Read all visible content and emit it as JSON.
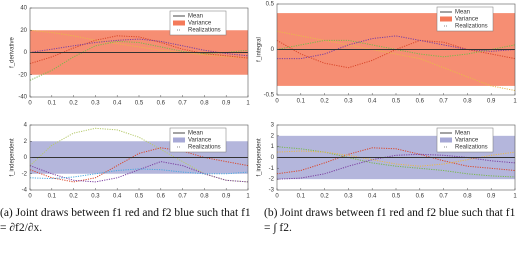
{
  "chart_data": [
    {
      "type": "line",
      "ylabel": "f_derivative",
      "x": [
        0,
        0.1,
        0.2,
        0.3,
        0.4,
        0.5,
        0.6,
        0.7,
        0.8,
        0.9,
        1
      ],
      "xlim": [
        0,
        1
      ],
      "xticks": [
        0,
        0.1,
        0.2,
        0.3,
        0.4,
        0.5,
        0.6,
        0.7,
        0.8,
        0.9,
        1
      ],
      "ylim": [
        -40,
        40
      ],
      "yticks": [
        -40,
        -20,
        0,
        20,
        40
      ],
      "series": [
        {
          "name": "Mean",
          "color": "#333333",
          "values": [
            0,
            0,
            0,
            0,
            0,
            0,
            0,
            0,
            0,
            0,
            0
          ]
        }
      ],
      "band": {
        "name": "Variance",
        "color": "#f47a5a",
        "lower": -20,
        "upper": 20
      },
      "realizations": {
        "name": "Realizations",
        "curves": [
          {
            "color": "#e8b84a",
            "values": [
              20,
              18,
              15,
              11,
              8,
              5,
              2,
              0,
              -2,
              -4,
              -5
            ]
          },
          {
            "color": "#d9472b",
            "values": [
              -10,
              -4,
              4,
              11,
              15,
              14,
              9,
              3,
              -1,
              -3,
              -5
            ]
          },
          {
            "color": "#7a3fa0",
            "values": [
              0,
              3,
              6,
              9,
              11,
              12,
              10,
              6,
              2,
              -1,
              -3
            ]
          },
          {
            "color": "#77b84a",
            "values": [
              -25,
              -16,
              -4,
              6,
              10,
              9,
              5,
              1,
              -1,
              0,
              2
            ]
          }
        ]
      }
    },
    {
      "type": "line",
      "ylabel": "f_integral",
      "x": [
        0,
        0.1,
        0.2,
        0.3,
        0.4,
        0.5,
        0.6,
        0.7,
        0.8,
        0.9,
        1
      ],
      "xlim": [
        0,
        1
      ],
      "xticks": [
        0,
        0.1,
        0.2,
        0.3,
        0.4,
        0.5,
        0.6,
        0.7,
        0.8,
        0.9,
        1
      ],
      "ylim": [
        -0.5,
        0.5
      ],
      "yticks": [
        -0.5,
        0,
        0.5
      ],
      "series": [
        {
          "name": "Mean",
          "color": "#333333",
          "values": [
            0,
            0,
            0,
            0,
            0,
            0,
            0,
            0,
            0,
            0,
            0
          ]
        }
      ],
      "band": {
        "name": "Variance",
        "color": "#f47a5a",
        "lower": -0.4,
        "upper": 0.4
      },
      "realizations": {
        "name": "Realizations",
        "curves": [
          {
            "color": "#d9472b",
            "values": [
              0.1,
              -0.05,
              -0.15,
              -0.2,
              -0.12,
              0,
              0.1,
              0.08,
              0,
              -0.05,
              -0.1
            ]
          },
          {
            "color": "#e8b84a",
            "values": [
              0.2,
              0.15,
              0.1,
              0.05,
              0,
              -0.05,
              -0.1,
              -0.2,
              -0.3,
              -0.4,
              -0.45
            ]
          },
          {
            "color": "#77b84a",
            "values": [
              0,
              0.05,
              0.1,
              0.1,
              0.05,
              0,
              -0.05,
              -0.08,
              -0.05,
              0,
              0.05
            ]
          },
          {
            "color": "#7a3fa0",
            "values": [
              -0.1,
              -0.1,
              -0.05,
              0.05,
              0.12,
              0.15,
              0.1,
              0.05,
              0,
              -0.02,
              0
            ]
          }
        ]
      }
    },
    {
      "type": "line",
      "ylabel": "f_independent",
      "x": [
        0,
        0.1,
        0.2,
        0.3,
        0.4,
        0.5,
        0.6,
        0.7,
        0.8,
        0.9,
        1
      ],
      "xlim": [
        0,
        1
      ],
      "xticks": [
        0,
        0.1,
        0.2,
        0.3,
        0.4,
        0.5,
        0.6,
        0.7,
        0.8,
        0.9,
        1
      ],
      "ylim": [
        -4,
        4
      ],
      "yticks": [
        -4,
        -2,
        0,
        2,
        4
      ],
      "series": [
        {
          "name": "Mean",
          "color": "#333333",
          "values": [
            0,
            0,
            0,
            0,
            0,
            0,
            0,
            0,
            0,
            0,
            0
          ]
        }
      ],
      "band": {
        "name": "Variance",
        "color": "#a7a9d6",
        "lower": -2,
        "upper": 2
      },
      "realizations": {
        "name": "Realizations",
        "curves": [
          {
            "color": "#b5c96a",
            "values": [
              -1,
              1.5,
              3,
              3.6,
              3.4,
              2.5,
              1,
              -0.5,
              -2,
              -2.8,
              -3
            ]
          },
          {
            "color": "#d9472b",
            "values": [
              -1.5,
              -2.5,
              -3,
              -2.5,
              -1,
              0.5,
              1.2,
              0.8,
              0,
              -0.5,
              -1
            ]
          },
          {
            "color": "#7a3fa0",
            "values": [
              -1,
              -2,
              -2.8,
              -3,
              -2.5,
              -1.5,
              -0.5,
              -1,
              -2,
              -2.8,
              -3
            ]
          },
          {
            "color": "#4aa8e0",
            "values": [
              -2.5,
              -2.6,
              -2.4,
              -2,
              -1.6,
              -1.4,
              -1.5,
              -1.8,
              -2,
              -2,
              -1.8
            ]
          }
        ]
      }
    },
    {
      "type": "line",
      "ylabel": "f_independent",
      "x": [
        0,
        0.1,
        0.2,
        0.3,
        0.4,
        0.5,
        0.6,
        0.7,
        0.8,
        0.9,
        1
      ],
      "xlim": [
        0,
        1
      ],
      "xticks": [
        0,
        0.1,
        0.2,
        0.3,
        0.4,
        0.5,
        0.6,
        0.7,
        0.8,
        0.9,
        1
      ],
      "ylim": [
        -3,
        3
      ],
      "yticks": [
        -3,
        -2,
        -1,
        0,
        1,
        2,
        3
      ],
      "series": [
        {
          "name": "Mean",
          "color": "#333333",
          "values": [
            0,
            0,
            0,
            0,
            0,
            0,
            0,
            0,
            0,
            0,
            0
          ]
        }
      ],
      "band": {
        "name": "Variance",
        "color": "#a7a9d6",
        "lower": -2,
        "upper": 2
      },
      "realizations": {
        "name": "Realizations",
        "curves": [
          {
            "color": "#d9472b",
            "values": [
              -1.5,
              -1.2,
              -0.5,
              0.3,
              0.9,
              0.8,
              0.3,
              -0.3,
              -0.8,
              -1,
              -1.2
            ]
          },
          {
            "color": "#77b84a",
            "values": [
              1,
              0.8,
              0.5,
              0,
              -0.5,
              -0.8,
              -1,
              -1.2,
              -1.5,
              -1.7,
              -1.8
            ]
          },
          {
            "color": "#7a3fa0",
            "values": [
              -2,
              -1.9,
              -1.5,
              -0.8,
              -0.2,
              0.2,
              0.3,
              0.2,
              0,
              -0.3,
              -0.5
            ]
          },
          {
            "color": "#e8b84a",
            "values": [
              0.5,
              0.6,
              0.5,
              0.2,
              -0.2,
              -0.6,
              -0.8,
              -0.6,
              -0.2,
              0.2,
              0.5
            ]
          }
        ]
      }
    }
  ],
  "captions": [
    "(a) Joint draws between f1 red and f2 blue such that f1 = ∂f2/∂x.",
    "(b) Joint draws between f1 red and f2 blue such that f1 = ∫ f2."
  ]
}
